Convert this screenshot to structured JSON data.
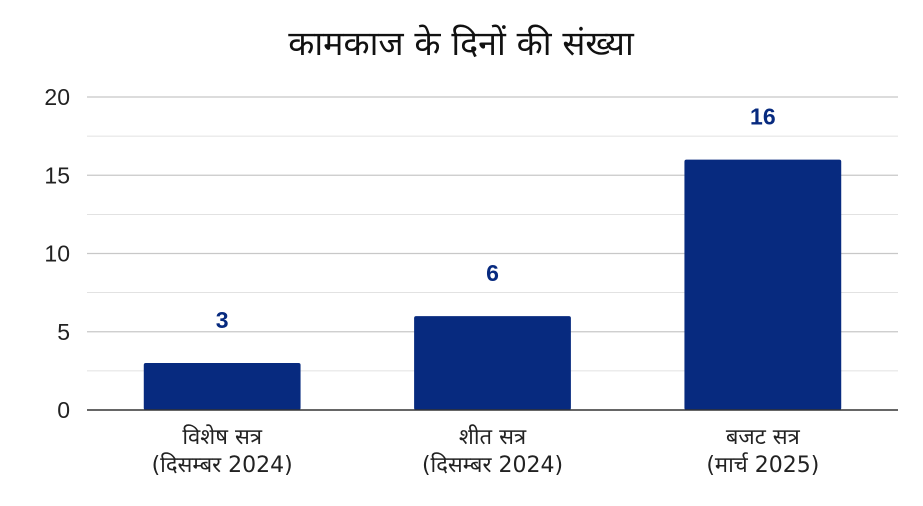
{
  "chart_data": {
    "type": "bar",
    "title": "कामकाज के दिनों की संख्या",
    "categories": [
      [
        "विशेष सत्र",
        "(दिसम्बर 2024)"
      ],
      [
        "शीत सत्र",
        "(दिसम्बर 2024)"
      ],
      [
        "बजट सत्र",
        "(मार्च 2025)"
      ]
    ],
    "values": [
      3,
      6,
      16
    ],
    "value_labels": [
      "3",
      "6",
      "16"
    ],
    "ylim": [
      0,
      20
    ],
    "yticks": [
      0,
      5,
      10,
      15,
      20
    ],
    "ytick_labels": [
      "0",
      "5",
      "10",
      "15",
      "20"
    ],
    "grid": true,
    "legend": "none",
    "colors": {
      "bar": "#072a7f",
      "value_label": "#072a7f",
      "grid": "#c8c8c8",
      "axis": "#333333"
    }
  }
}
